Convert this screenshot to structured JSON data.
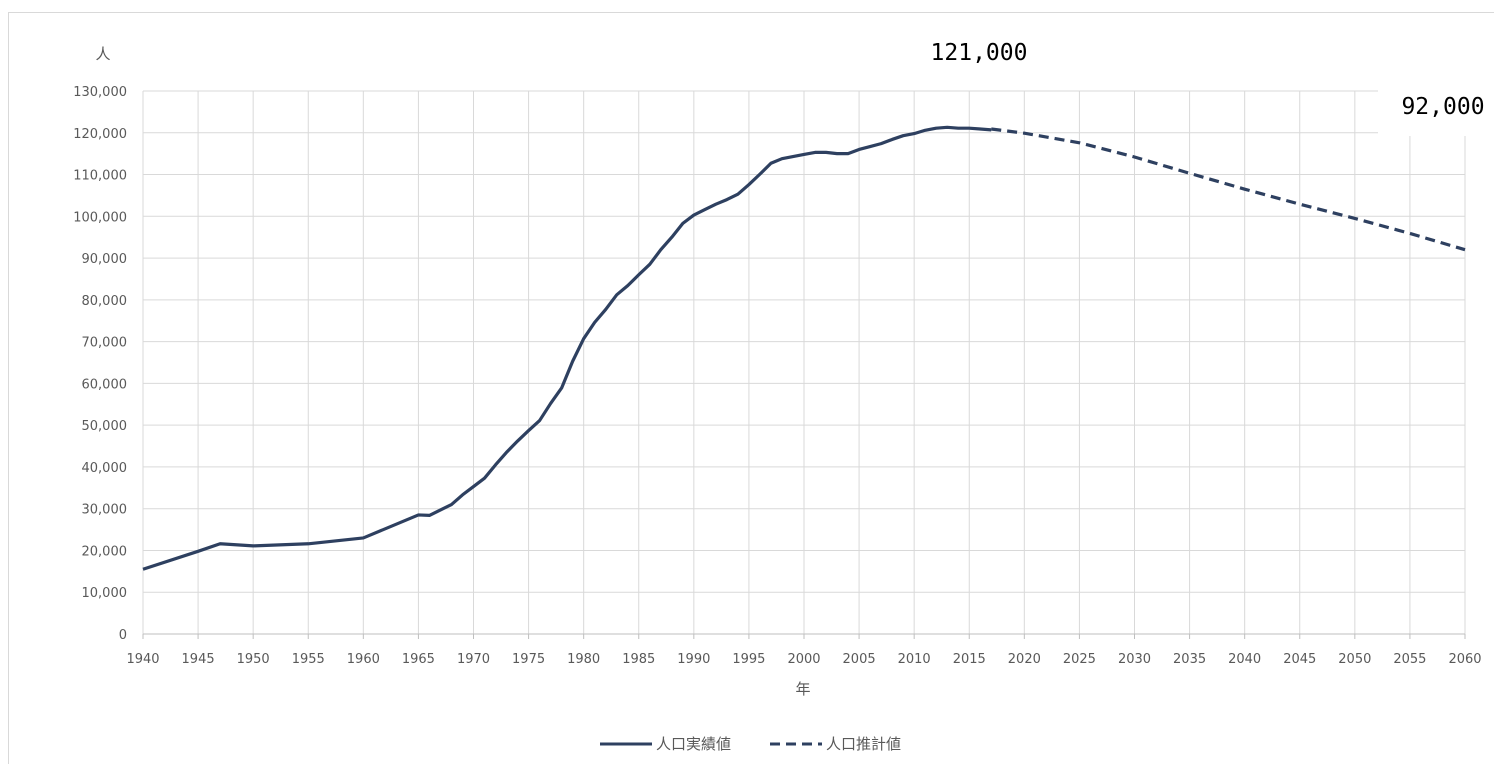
{
  "chart_data": {
    "type": "line",
    "ylabel": "人",
    "xlabel": "年",
    "xlim": [
      1940,
      2060
    ],
    "ylim": [
      0,
      130000
    ],
    "grid": true,
    "legend_position": "bottom-center",
    "x_ticks": [
      "1940",
      "1945",
      "1950",
      "1955",
      "1960",
      "1965",
      "1970",
      "1975",
      "1980",
      "1985",
      "1990",
      "1995",
      "2000",
      "2005",
      "2010",
      "2015",
      "2020",
      "2025",
      "2030",
      "2035",
      "2040",
      "2045",
      "2050",
      "2055",
      "2060"
    ],
    "y_ticks": [
      "0",
      "10,000",
      "20,000",
      "30,000",
      "40,000",
      "50,000",
      "60,000",
      "70,000",
      "80,000",
      "90,000",
      "100,000",
      "110,000",
      "120,000",
      "130,000"
    ],
    "series": [
      {
        "name": "人口実績値",
        "style": "solid",
        "color": "#2e4060",
        "points": [
          [
            1940,
            15500
          ],
          [
            1945,
            19800
          ],
          [
            1947,
            21600
          ],
          [
            1950,
            21100
          ],
          [
            1955,
            21600
          ],
          [
            1960,
            23000
          ],
          [
            1965,
            28500
          ],
          [
            1966,
            28400
          ],
          [
            1968,
            31000
          ],
          [
            1969,
            33300
          ],
          [
            1970,
            35300
          ],
          [
            1971,
            37300
          ],
          [
            1972,
            40500
          ],
          [
            1973,
            43500
          ],
          [
            1974,
            46200
          ],
          [
            1975,
            48700
          ],
          [
            1976,
            51100
          ],
          [
            1977,
            55200
          ],
          [
            1978,
            58900
          ],
          [
            1979,
            65300
          ],
          [
            1980,
            70700
          ],
          [
            1981,
            74600
          ],
          [
            1982,
            77700
          ],
          [
            1983,
            81200
          ],
          [
            1984,
            83400
          ],
          [
            1985,
            86000
          ],
          [
            1986,
            88500
          ],
          [
            1987,
            92000
          ],
          [
            1988,
            95000
          ],
          [
            1989,
            98300
          ],
          [
            1990,
            100300
          ],
          [
            1991,
            101600
          ],
          [
            1992,
            102900
          ],
          [
            1993,
            104000
          ],
          [
            1994,
            105300
          ],
          [
            1995,
            107600
          ],
          [
            1996,
            110100
          ],
          [
            1997,
            112700
          ],
          [
            1998,
            113800
          ],
          [
            1999,
            114300
          ],
          [
            2000,
            114800
          ],
          [
            2001,
            115300
          ],
          [
            2002,
            115300
          ],
          [
            2003,
            115000
          ],
          [
            2004,
            115000
          ],
          [
            2005,
            116000
          ],
          [
            2006,
            116700
          ],
          [
            2007,
            117400
          ],
          [
            2008,
            118400
          ],
          [
            2009,
            119300
          ],
          [
            2010,
            119800
          ],
          [
            2011,
            120600
          ],
          [
            2012,
            121100
          ],
          [
            2013,
            121300
          ],
          [
            2014,
            121100
          ],
          [
            2015,
            121100
          ],
          [
            2016,
            120900
          ],
          [
            2017,
            120700
          ]
        ]
      },
      {
        "name": "人口推計値",
        "style": "dashed",
        "color": "#2e4060",
        "points": [
          [
            2017,
            120900
          ],
          [
            2020,
            119900
          ],
          [
            2025,
            117600
          ],
          [
            2030,
            114200
          ],
          [
            2035,
            110300
          ],
          [
            2040,
            106500
          ],
          [
            2045,
            102900
          ],
          [
            2050,
            99500
          ],
          [
            2055,
            95900
          ],
          [
            2060,
            92000
          ]
        ]
      }
    ],
    "annotations": [
      {
        "text": "121,000",
        "x": 2013,
        "y": 121000
      },
      {
        "text": "92,000",
        "x": 2060,
        "y": 92000
      }
    ]
  }
}
